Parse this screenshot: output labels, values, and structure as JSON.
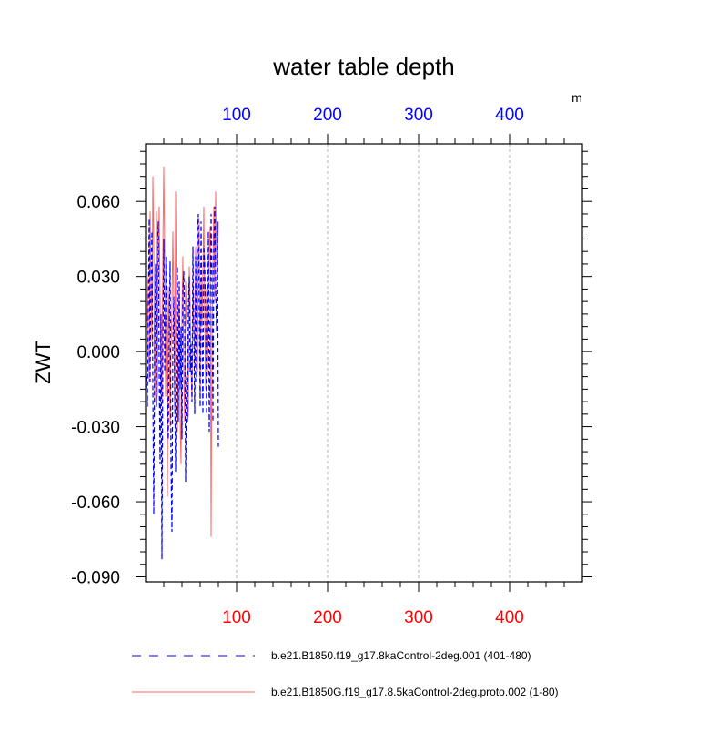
{
  "chart_data": {
    "type": "line",
    "title": "water table depth",
    "ylabel": "ZWT",
    "top_axis_unit": "m",
    "xlim": [
      0,
      480
    ],
    "ylim": [
      -0.092,
      0.083
    ],
    "x_ticks": [
      100,
      200,
      300,
      400
    ],
    "x_tick_labels": [
      "100",
      "200",
      "300",
      "400"
    ],
    "y_ticks": [
      -0.09,
      -0.06,
      -0.03,
      0.0,
      0.03,
      0.06
    ],
    "y_tick_labels": [
      "-0.090",
      "-0.060",
      "-0.030",
      "0.000",
      "0.030",
      "0.060"
    ],
    "grid": "vertical dashed at x ticks",
    "legend_position": "bottom",
    "colors": {
      "top_tick_labels": "#0000ff",
      "bottom_tick_labels": "#ff0000",
      "series_1": "#0000ff",
      "series_2": "#ff6666"
    },
    "series": [
      {
        "name": "b.e21.B1850.f19_g17.8kaControl-2deg.001 (401-480)",
        "style": "dashed",
        "x": [
          1,
          2,
          3,
          4,
          5,
          6,
          7,
          8,
          9,
          10,
          11,
          12,
          13,
          14,
          15,
          16,
          17,
          18,
          19,
          20,
          21,
          22,
          23,
          24,
          25,
          26,
          27,
          28,
          29,
          30,
          31,
          32,
          33,
          34,
          35,
          36,
          37,
          38,
          39,
          40,
          41,
          42,
          43,
          44,
          45,
          46,
          47,
          48,
          49,
          50,
          51,
          52,
          53,
          54,
          55,
          56,
          57,
          58,
          59,
          60,
          61,
          62,
          63,
          64,
          65,
          66,
          67,
          68,
          69,
          70,
          71,
          72,
          73,
          74,
          75,
          76,
          77,
          78,
          79,
          80
        ],
        "y": [
          -0.01,
          -0.022,
          0.015,
          0.053,
          -0.012,
          0.03,
          0.048,
          -0.015,
          -0.065,
          0.002,
          0.035,
          -0.022,
          0.044,
          0.052,
          -0.008,
          -0.045,
          0.015,
          -0.083,
          0.002,
          0.045,
          -0.008,
          0.012,
          0.038,
          -0.018,
          -0.035,
          0.008,
          0.036,
          -0.045,
          -0.072,
          0.005,
          0.022,
          -0.012,
          -0.048,
          0.012,
          0.034,
          -0.028,
          0.028,
          -0.015,
          0.01,
          -0.035,
          0.024,
          0.032,
          0.012,
          -0.052,
          -0.01,
          -0.028,
          0.018,
          0.03,
          -0.008,
          0.003,
          -0.02,
          0.042,
          0.008,
          -0.025,
          0.038,
          -0.012,
          0.048,
          0.055,
          0.015,
          -0.022,
          0.052,
          0.01,
          -0.025,
          0.042,
          0.035,
          0.012,
          -0.025,
          0.005,
          0.048,
          -0.032,
          0.018,
          0.055,
          0.022,
          -0.028,
          0.042,
          0.058,
          0.026,
          0.008,
          0.052,
          -0.038
        ]
      },
      {
        "name": "b.e21.B1850G.f19_g17.8.5kaControl-2deg.proto.002 (1-80)",
        "style": "solid",
        "x": [
          1,
          2,
          3,
          4,
          5,
          6,
          7,
          8,
          9,
          10,
          11,
          12,
          13,
          14,
          15,
          16,
          17,
          18,
          19,
          20,
          21,
          22,
          23,
          24,
          25,
          26,
          27,
          28,
          29,
          30,
          31,
          32,
          33,
          34,
          35,
          36,
          37,
          38,
          39,
          40,
          41,
          42,
          43,
          44,
          45,
          46,
          47,
          48,
          49,
          50,
          51,
          52,
          53,
          54,
          55,
          56,
          57,
          58,
          59,
          60,
          61,
          62,
          63,
          64,
          65,
          66,
          67,
          68,
          69,
          70,
          71,
          72,
          73,
          74,
          75,
          76,
          77,
          78,
          79,
          80
        ],
        "y": [
          0.012,
          0.03,
          0.0,
          -0.012,
          0.056,
          0.028,
          0.004,
          0.07,
          0.042,
          -0.02,
          0.005,
          0.056,
          -0.018,
          0.034,
          0.058,
          0.02,
          -0.008,
          -0.02,
          0.04,
          0.074,
          0.042,
          -0.018,
          0.015,
          -0.058,
          0.026,
          0.008,
          -0.03,
          0.002,
          0.018,
          0.048,
          0.02,
          -0.025,
          0.064,
          0.018,
          -0.032,
          0.004,
          0.028,
          -0.028,
          -0.045,
          0.016,
          0.038,
          -0.01,
          -0.028,
          0.028,
          0.012,
          0.005,
          -0.026,
          0.034,
          0.018,
          -0.008,
          -0.02,
          0.028,
          0.01,
          -0.005,
          0.042,
          0.02,
          -0.008,
          0.035,
          0.052,
          -0.018,
          0.03,
          0.01,
          0.032,
          0.058,
          0.015,
          -0.015,
          0.025,
          -0.01,
          0.02,
          0.042,
          0.05,
          -0.074,
          0.012,
          0.035,
          0.058,
          0.02,
          0.064,
          0.036,
          0.03,
          0.052
        ]
      }
    ]
  }
}
